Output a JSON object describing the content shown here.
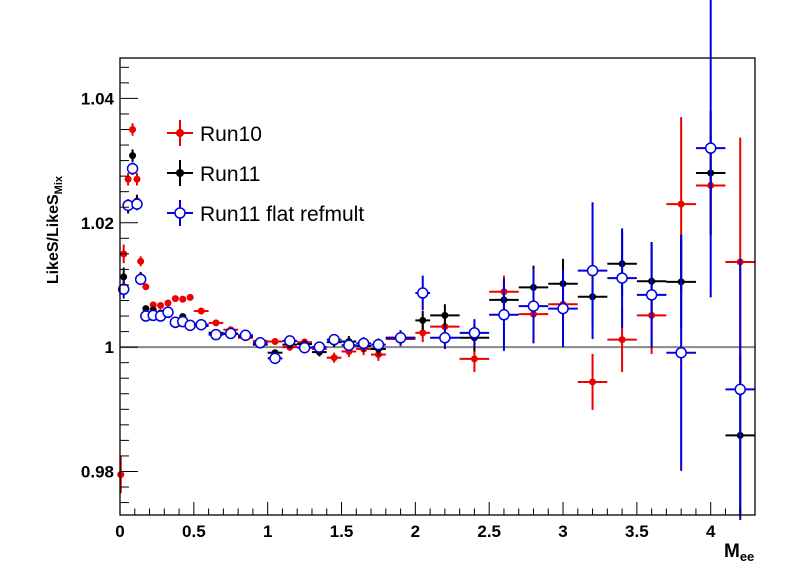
{
  "chart_data": {
    "type": "scatter",
    "xlabel": "M",
    "xlabel_sub": "ee",
    "ylabel": "LikeS/LikeS",
    "ylabel_sub": "Mix",
    "xlim": [
      0,
      4.3
    ],
    "ylim": [
      0.973,
      1.0465
    ],
    "x_ticks": [
      0,
      0.5,
      1,
      1.5,
      2,
      2.5,
      3,
      3.5,
      4
    ],
    "x_tick_labels": [
      "0",
      "0.5",
      "1",
      "1.5",
      "2",
      "2.5",
      "3",
      "3.5",
      "4"
    ],
    "y_ticks": [
      0.98,
      1.0,
      1.02,
      1.04
    ],
    "y_tick_labels": [
      "0.98",
      "1",
      "1.02",
      "1.04"
    ],
    "reference_line": 1.0,
    "legend_position": "top-left",
    "series": [
      {
        "name": "Run10",
        "color": "#ee0000",
        "marker": "filled-circle",
        "points": [
          [
            0.005,
            0.9795,
            0.005,
            0.003
          ],
          [
            0.025,
            1.015,
            0.01,
            0.0015
          ],
          [
            0.055,
            1.027,
            0.01,
            0.001
          ],
          [
            0.085,
            1.035,
            0.01,
            0.001
          ],
          [
            0.115,
            1.027,
            0.01,
            0.001
          ],
          [
            0.14,
            1.0138,
            0.01,
            0.0008
          ],
          [
            0.175,
            1.0097,
            0.015,
            0.0005
          ],
          [
            0.225,
            1.0068,
            0.02,
            0.0004
          ],
          [
            0.275,
            1.0067,
            0.02,
            0.0004
          ],
          [
            0.325,
            1.0071,
            0.02,
            0.0004
          ],
          [
            0.375,
            1.0078,
            0.02,
            0.0004
          ],
          [
            0.425,
            1.0077,
            0.02,
            0.0004
          ],
          [
            0.475,
            1.008,
            0.02,
            0.0004
          ],
          [
            0.55,
            1.0058,
            0.05,
            0.0004
          ],
          [
            0.65,
            1.0039,
            0.05,
            0.0004
          ],
          [
            0.75,
            1.0028,
            0.05,
            0.0005
          ],
          [
            0.85,
            1.0015,
            0.05,
            0.0005
          ],
          [
            0.95,
            1.001,
            0.05,
            0.0005
          ],
          [
            1.05,
            1.0009,
            0.05,
            0.0005
          ],
          [
            1.15,
            1.0,
            0.05,
            0.0006
          ],
          [
            1.25,
            1.0008,
            0.05,
            0.0006
          ],
          [
            1.35,
            0.9997,
            0.05,
            0.0007
          ],
          [
            1.45,
            0.9983,
            0.05,
            0.0008
          ],
          [
            1.55,
            0.9993,
            0.05,
            0.0009
          ],
          [
            1.65,
            0.9997,
            0.05,
            0.001
          ],
          [
            1.75,
            0.9988,
            0.05,
            0.001
          ],
          [
            1.9,
            1.0013,
            0.1,
            0.0012
          ],
          [
            2.05,
            1.0023,
            0.05,
            0.0015
          ],
          [
            2.2,
            1.0033,
            0.1,
            0.0018
          ],
          [
            2.4,
            0.9981,
            0.1,
            0.0021
          ],
          [
            2.6,
            1.0089,
            0.1,
            0.0026
          ],
          [
            2.8,
            1.0053,
            0.1,
            0.003
          ],
          [
            3.0,
            1.0069,
            0.1,
            0.004
          ],
          [
            3.2,
            0.9944,
            0.1,
            0.0045
          ],
          [
            3.4,
            1.0012,
            0.1,
            0.0052
          ],
          [
            3.6,
            1.0051,
            0.1,
            0.0062
          ],
          [
            3.8,
            1.023,
            0.1,
            0.014
          ],
          [
            4.0,
            1.026,
            0.1,
            0.008
          ],
          [
            4.2,
            1.0137,
            0.1,
            0.02
          ]
        ]
      },
      {
        "name": "Run11",
        "color": "#000000",
        "marker": "filled-circle",
        "points": [
          [
            0.025,
            1.0113,
            0.01,
            0.0015
          ],
          [
            0.055,
            1.0225,
            0.01,
            0.001
          ],
          [
            0.085,
            1.0308,
            0.01,
            0.001
          ],
          [
            0.115,
            1.0235,
            0.01,
            0.001
          ],
          [
            0.14,
            1.0113,
            0.01,
            0.0008
          ],
          [
            0.175,
            1.0062,
            0.015,
            0.0005
          ],
          [
            0.225,
            1.006,
            0.02,
            0.0004
          ],
          [
            0.275,
            1.0055,
            0.02,
            0.0004
          ],
          [
            0.325,
            1.0052,
            0.02,
            0.0004
          ],
          [
            0.375,
            1.0036,
            0.02,
            0.0004
          ],
          [
            0.425,
            1.0049,
            0.02,
            0.0004
          ],
          [
            0.475,
            1.0037,
            0.02,
            0.0004
          ],
          [
            0.55,
            1.0034,
            0.05,
            0.0004
          ],
          [
            0.65,
            1.0023,
            0.05,
            0.0004
          ],
          [
            0.75,
            1.0021,
            0.05,
            0.0005
          ],
          [
            0.85,
            1.0017,
            0.05,
            0.0005
          ],
          [
            0.95,
            1.0004,
            0.05,
            0.0005
          ],
          [
            1.05,
            0.9991,
            0.05,
            0.0005
          ],
          [
            1.15,
            1.0004,
            0.05,
            0.0006
          ],
          [
            1.25,
            1.0005,
            0.05,
            0.0006
          ],
          [
            1.35,
            0.9992,
            0.05,
            0.0007
          ],
          [
            1.45,
            1.0008,
            0.05,
            0.0008
          ],
          [
            1.55,
            1.0009,
            0.05,
            0.0009
          ],
          [
            1.65,
            1.0002,
            0.05,
            0.001
          ],
          [
            1.75,
            0.9997,
            0.05,
            0.001
          ],
          [
            1.9,
            1.0015,
            0.1,
            0.0012
          ],
          [
            2.05,
            1.0043,
            0.05,
            0.0015
          ],
          [
            2.2,
            1.0051,
            0.1,
            0.0018
          ],
          [
            2.4,
            1.0015,
            0.1,
            0.0022
          ],
          [
            2.6,
            1.0076,
            0.1,
            0.0027
          ],
          [
            2.8,
            1.0096,
            0.1,
            0.0035
          ],
          [
            3.0,
            1.0102,
            0.1,
            0.004
          ],
          [
            3.2,
            1.0081,
            0.1,
            0.0045
          ],
          [
            3.4,
            1.0134,
            0.1,
            0.0052
          ],
          [
            3.6,
            1.0106,
            0.1,
            0.0062
          ],
          [
            3.8,
            1.0105,
            0.1,
            0.0075
          ],
          [
            4.0,
            1.028,
            0.1,
            0.01
          ],
          [
            4.2,
            0.9858,
            0.1,
            0.013
          ]
        ]
      },
      {
        "name": "Run11 flat refmult",
        "color": "#0000dd",
        "marker": "open-circle",
        "points": [
          [
            0.025,
            1.0093,
            0.01,
            0.0015
          ],
          [
            0.055,
            1.0228,
            0.01,
            0.001
          ],
          [
            0.085,
            1.0287,
            0.01,
            0.001
          ],
          [
            0.115,
            1.023,
            0.01,
            0.001
          ],
          [
            0.14,
            1.0109,
            0.01,
            0.0008
          ],
          [
            0.175,
            1.005,
            0.015,
            0.0005
          ],
          [
            0.225,
            1.0051,
            0.02,
            0.0004
          ],
          [
            0.275,
            1.005,
            0.02,
            0.0004
          ],
          [
            0.325,
            1.0056,
            0.02,
            0.0004
          ],
          [
            0.375,
            1.004,
            0.02,
            0.0004
          ],
          [
            0.425,
            1.0041,
            0.02,
            0.0004
          ],
          [
            0.475,
            1.0035,
            0.02,
            0.0004
          ],
          [
            0.55,
            1.0036,
            0.05,
            0.0004
          ],
          [
            0.65,
            1.002,
            0.05,
            0.0004
          ],
          [
            0.75,
            1.0022,
            0.05,
            0.0005
          ],
          [
            0.85,
            1.0019,
            0.05,
            0.0005
          ],
          [
            0.95,
            1.0007,
            0.05,
            0.0005
          ],
          [
            1.05,
            0.9982,
            0.05,
            0.0005
          ],
          [
            1.15,
            1.001,
            0.05,
            0.0006
          ],
          [
            1.25,
            0.9999,
            0.05,
            0.0006
          ],
          [
            1.35,
            1.0,
            0.05,
            0.0007
          ],
          [
            1.45,
            1.0012,
            0.05,
            0.0008
          ],
          [
            1.55,
            1.0003,
            0.05,
            0.0009
          ],
          [
            1.65,
            1.0006,
            0.05,
            0.001
          ],
          [
            1.75,
            1.0004,
            0.05,
            0.001
          ],
          [
            1.9,
            1.0015,
            0.1,
            0.0012
          ],
          [
            2.05,
            1.0087,
            0.05,
            0.0028
          ],
          [
            2.2,
            1.0015,
            0.1,
            0.0018
          ],
          [
            2.4,
            1.0023,
            0.1,
            0.0022
          ],
          [
            2.6,
            1.0052,
            0.1,
            0.0058
          ],
          [
            2.8,
            1.0066,
            0.1,
            0.006
          ],
          [
            3.0,
            1.0062,
            0.1,
            0.0062
          ],
          [
            3.2,
            1.0123,
            0.1,
            0.011
          ],
          [
            3.4,
            1.0111,
            0.1,
            0.008
          ],
          [
            3.6,
            1.0084,
            0.1,
            0.0085
          ],
          [
            3.8,
            0.9991,
            0.1,
            0.019
          ],
          [
            4.0,
            1.032,
            0.1,
            0.024
          ],
          [
            4.2,
            0.9932,
            0.1,
            0.021
          ]
        ]
      }
    ]
  }
}
